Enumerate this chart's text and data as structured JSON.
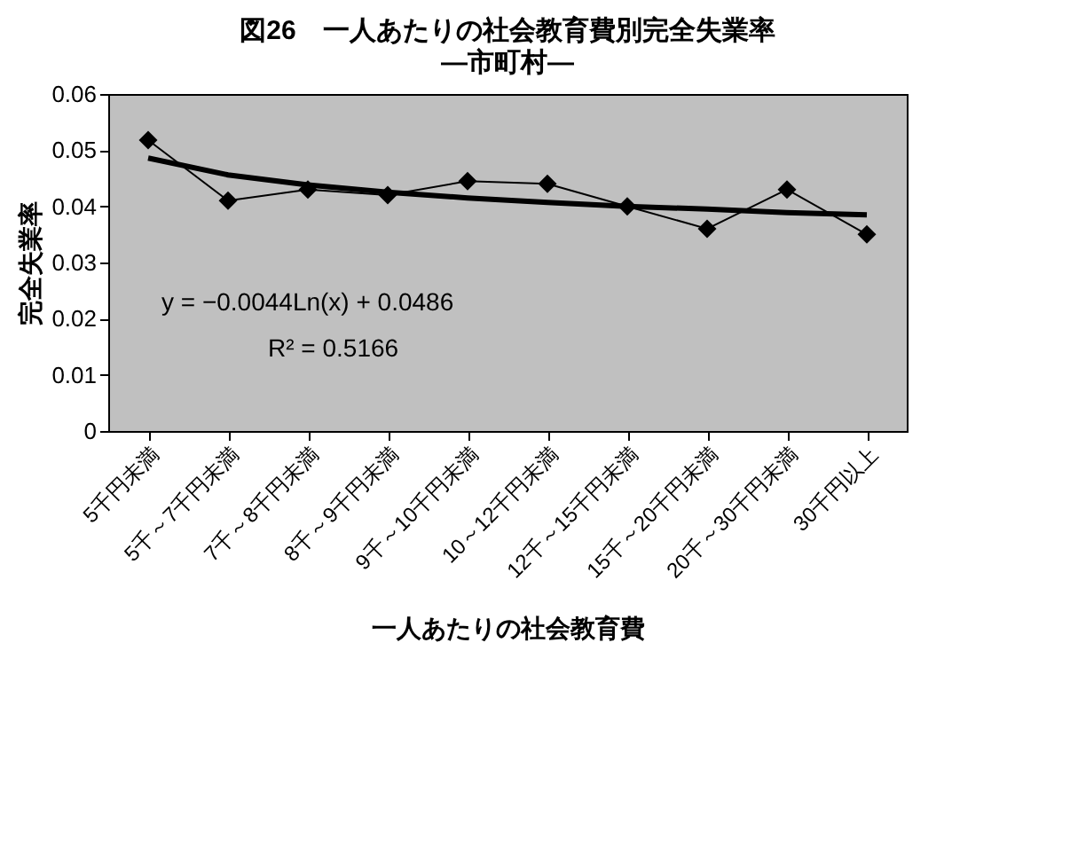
{
  "chart_data": {
    "type": "line",
    "title": "図26　一人あたりの社会教育費別完全失業率",
    "subtitle": "―市町村―",
    "xlabel": "一人あたりの社会教育費",
    "ylabel": "完全失業率",
    "categories": [
      "5千円未満",
      "5千～7千円未満",
      "7千～8千円未満",
      "8千～9千円未満",
      "9千～10千円未満",
      "10～12千円未満",
      "12千～15千円未満",
      "15千～20千円未満",
      "20千～30千円未満",
      "30千円以上"
    ],
    "series": [
      {
        "type": "line",
        "color": "#000000",
        "marker": "diamond",
        "values": [
          0.0518,
          0.041,
          0.043,
          0.042,
          0.0445,
          0.044,
          0.04,
          0.036,
          0.043,
          0.035
        ]
      },
      {
        "type": "line",
        "color": "#000000",
        "marker": "none",
        "values": [
          0.0486,
          0.0456,
          0.0438,
          0.0425,
          0.0415,
          0.0407,
          0.04,
          0.0395,
          0.0389,
          0.0385
        ]
      }
    ],
    "annotations": [
      "y = −0.0044Ln(x) + 0.0486",
      "R² = 0.5166"
    ],
    "ylim": [
      0,
      0.06
    ],
    "yticks": [
      0,
      0.01,
      0.02,
      0.03,
      0.04,
      0.05,
      0.06
    ],
    "grid": false
  }
}
